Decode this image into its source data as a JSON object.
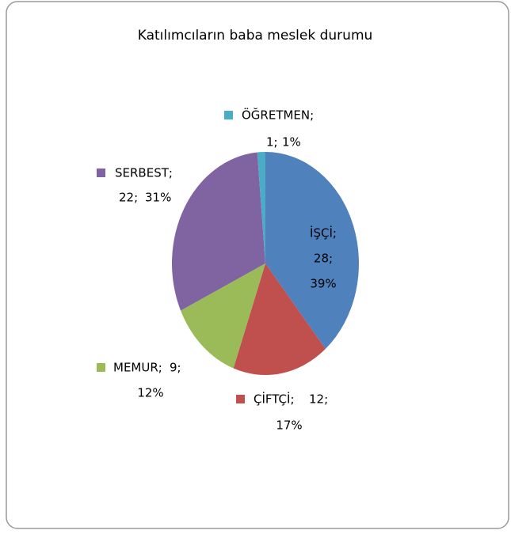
{
  "chart_data": {
    "type": "pie",
    "title": "Katılımcıların baba meslek durumu",
    "categories": [
      "İŞÇİ;",
      "ÇİFTÇİ;",
      "MEMUR;",
      "SERBEST;",
      "ÖĞRETMEN;"
    ],
    "values": [
      28,
      12,
      9,
      22,
      1
    ],
    "value_labels": [
      "28;",
      "12;",
      "9;",
      "22;",
      "1;"
    ],
    "percent_labels": [
      "39%",
      "17%",
      "12%",
      "31%",
      "1%"
    ],
    "colors": [
      "#4f81bd",
      "#c0504d",
      "#9bbb59",
      "#8064a2",
      "#4bacc6"
    ]
  }
}
